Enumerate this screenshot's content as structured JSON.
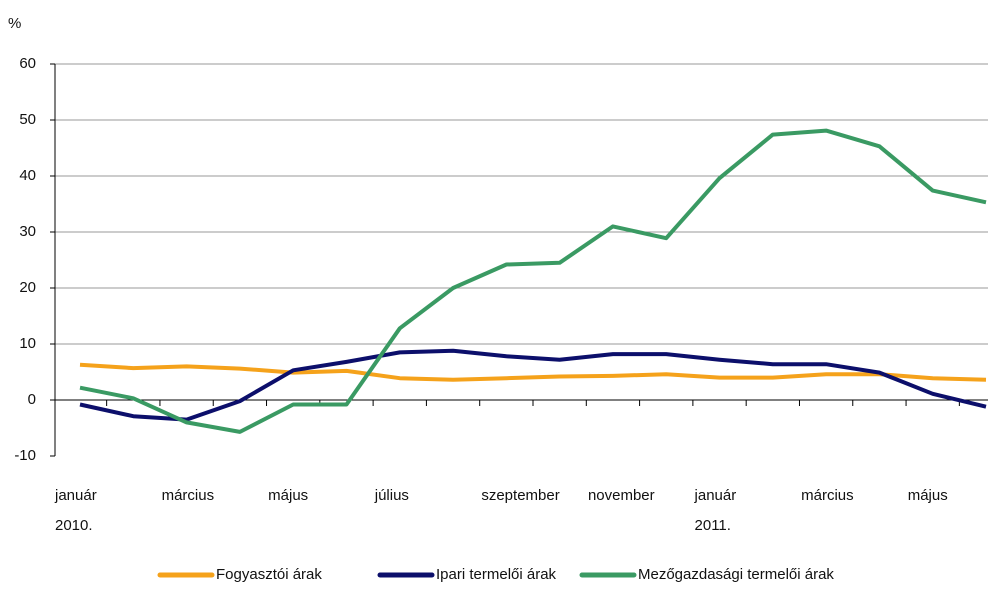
{
  "chart_data": {
    "type": "line",
    "y_label": "%",
    "categories": [
      "január\n2010.",
      null,
      "március",
      null,
      "május",
      null,
      "július",
      null,
      "szeptember",
      null,
      "november",
      null,
      "január\n2011.",
      null,
      "március",
      null,
      "május",
      null
    ],
    "series": [
      {
        "name": "Fogyasztói árak",
        "color": "#f5a21b",
        "values": [
          6.3,
          5.7,
          6.0,
          5.6,
          4.9,
          5.2,
          3.9,
          3.6,
          3.9,
          4.2,
          4.3,
          4.6,
          4.0,
          4.0,
          4.6,
          4.6,
          3.9,
          3.6
        ]
      },
      {
        "name": "Ipari termelői árak",
        "color": "#0c0f6b",
        "values": [
          -0.8,
          -2.9,
          -3.5,
          -0.2,
          5.3,
          6.8,
          8.5,
          8.8,
          7.8,
          7.2,
          8.2,
          8.2,
          7.2,
          6.4,
          6.4,
          4.9,
          1.1,
          -1.2
        ]
      },
      {
        "name": "Mezőgazdasági termelői árak",
        "color": "#3a9a63",
        "values": [
          2.2,
          0.3,
          -4.0,
          -5.7,
          -0.8,
          -0.8,
          12.8,
          20.0,
          24.2,
          24.5,
          31.0,
          28.9,
          39.6,
          47.4,
          48.1,
          45.3,
          37.4,
          35.3
        ]
      }
    ],
    "ylim": [
      -10,
      60
    ],
    "yticks": [
      -10,
      0,
      10,
      20,
      30,
      40,
      50,
      60
    ],
    "grid": true,
    "legend": "bottom"
  }
}
